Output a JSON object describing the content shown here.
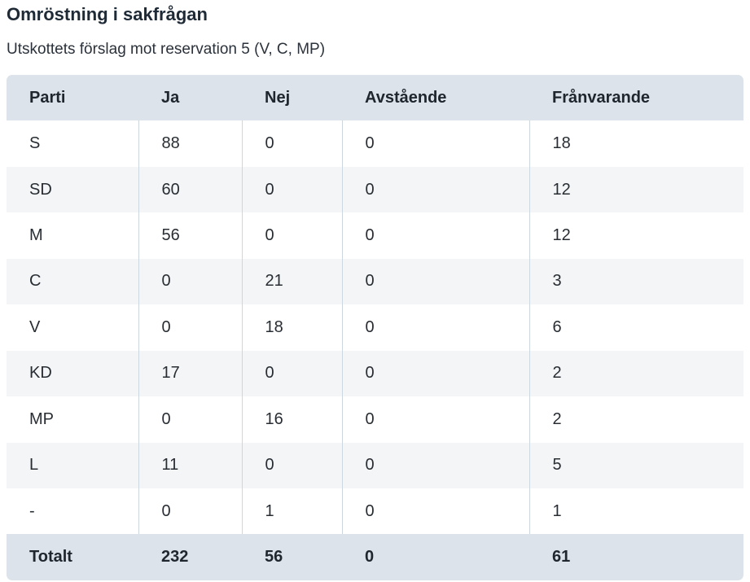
{
  "title": "Omröstning i sakfrågan",
  "subtitle": "Utskottets förslag mot reservation 5 (V, C, MP)",
  "table": {
    "columns": [
      "Parti",
      "Ja",
      "Nej",
      "Avstående",
      "Frånvarande"
    ],
    "rows": [
      [
        "S",
        "88",
        "0",
        "0",
        "18"
      ],
      [
        "SD",
        "60",
        "0",
        "0",
        "12"
      ],
      [
        "M",
        "56",
        "0",
        "0",
        "12"
      ],
      [
        "C",
        "0",
        "21",
        "0",
        "3"
      ],
      [
        "V",
        "0",
        "18",
        "0",
        "6"
      ],
      [
        "KD",
        "17",
        "0",
        "0",
        "2"
      ],
      [
        "MP",
        "0",
        "16",
        "0",
        "2"
      ],
      [
        "L",
        "11",
        "0",
        "0",
        "5"
      ],
      [
        "-",
        "0",
        "1",
        "0",
        "1"
      ]
    ],
    "total": [
      "Totalt",
      "232",
      "56",
      "0",
      "61"
    ]
  },
  "colors": {
    "header_bg": "#dde3ea",
    "alt_row_bg": "#f4f5f7",
    "column_separator": "#cdd7e0",
    "text": "#282d33",
    "title_text": "#1f2a37"
  }
}
